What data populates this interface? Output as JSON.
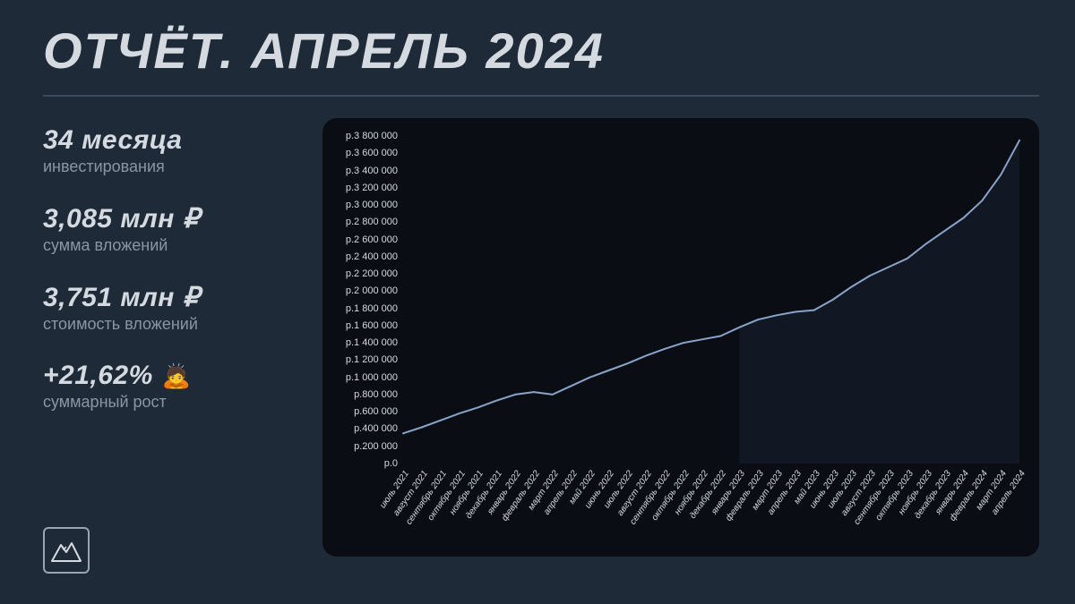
{
  "title": "ОТЧЁТ. АПРЕЛЬ 2024",
  "stats": [
    {
      "value": "34 месяца",
      "label": "инвестирования"
    },
    {
      "value": "3,085 млн ₽",
      "label": "сумма вложений"
    },
    {
      "value": "3,751 млн ₽",
      "label": "стоимость вложений"
    },
    {
      "value": "+21,62%",
      "label": "суммарный рост",
      "emoji": "🙇"
    }
  ],
  "chart": {
    "type": "line",
    "background": "#0a0e14",
    "line_color": "#8aa4c9",
    "line_width": 2,
    "text_color": "#d4dae0",
    "grid_color": "#1a2230",
    "y": {
      "min": 0,
      "max": 3800000,
      "step": 200000,
      "prefix": "р."
    },
    "x_labels": [
      "июль 2021",
      "август 2021",
      "сентябрь 2021",
      "октябрь 2021",
      "ноябрь 2021",
      "декабрь 2021",
      "январь 2022",
      "февраль 2022",
      "март 2022",
      "апрель 2022",
      "май 2022",
      "июнь 2022",
      "июль 2022",
      "август 2022",
      "сентябрь 2022",
      "октябрь 2022",
      "ноябрь 2022",
      "декабрь 2022",
      "январь 2023",
      "февраль 2023",
      "март 2023",
      "апрель 2023",
      "май 2023",
      "июнь 2023",
      "июль 2023",
      "август 2023",
      "сентябрь 2023",
      "октябрь 2023",
      "ноябрь 2023",
      "декабрь 2023",
      "январь 2024",
      "февраль 2024",
      "март 2024",
      "апрель 2024"
    ],
    "values": [
      350000,
      420000,
      500000,
      580000,
      650000,
      730000,
      800000,
      830000,
      800000,
      900000,
      1000000,
      1080000,
      1160000,
      1250000,
      1330000,
      1400000,
      1440000,
      1480000,
      1580000,
      1670000,
      1720000,
      1760000,
      1780000,
      1900000,
      2050000,
      2180000,
      2280000,
      2380000,
      2550000,
      2700000,
      2850000,
      3050000,
      3350000,
      3750000
    ]
  },
  "colors": {
    "page_bg": "#1e2a38",
    "title": "#d4dae0",
    "subtext": "#8a96a3",
    "divider": "#3a4a5c",
    "logo_border": "#9aa5b1"
  },
  "fonts": {
    "title_size": 56,
    "stat_value_size": 30,
    "stat_label_size": 18,
    "tick_size": 11
  }
}
